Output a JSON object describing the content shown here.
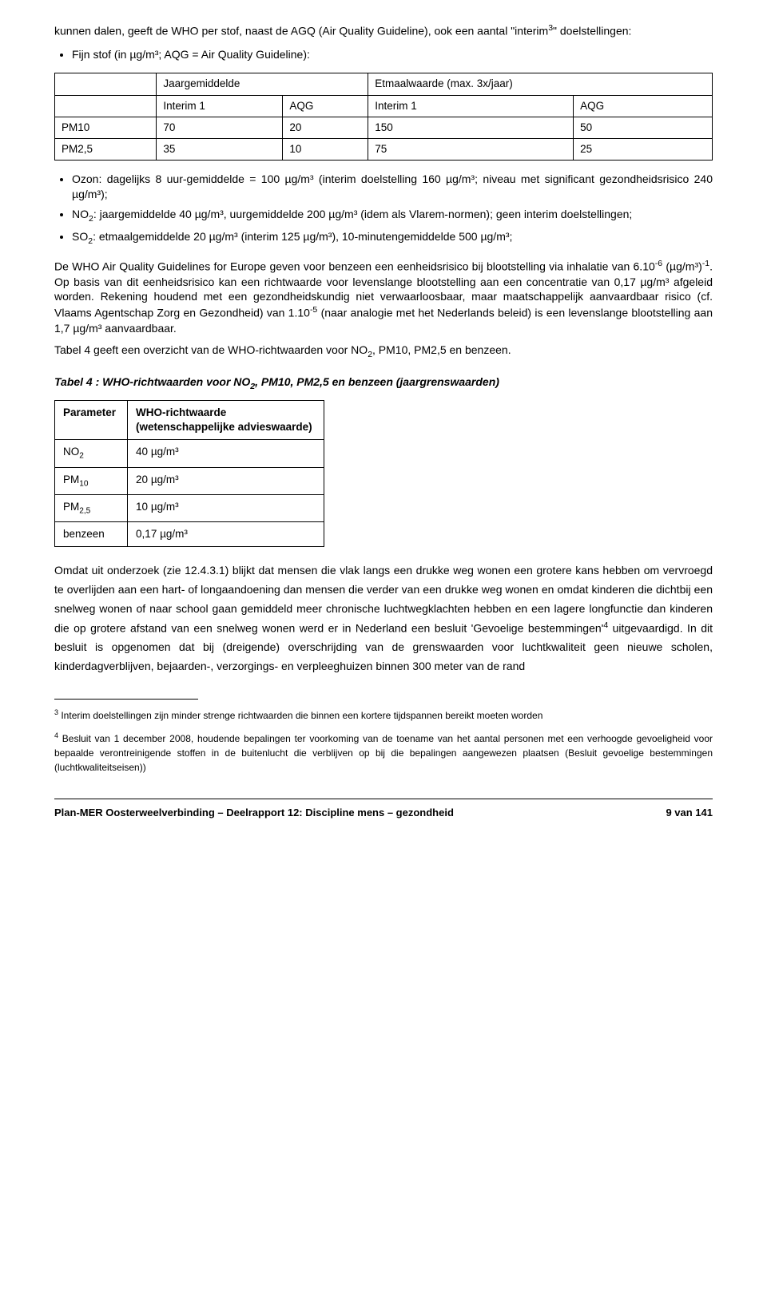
{
  "intro": {
    "para1_a": "kunnen dalen, geeft de WHO per stof, naast de AGQ (Air Quality Guideline), ook een aantal \"interim",
    "para1_sup": "3",
    "para1_b": "\" doelstellingen:"
  },
  "bullet_fijn": "Fijn stof (in µg/m³; AQG = Air Quality Guideline):",
  "table1": {
    "h_jaar": "Jaargemiddelde",
    "h_etmaal": "Etmaalwaarde (max. 3x/jaar)",
    "sub_i1a": "Interim 1",
    "sub_aqg_a": "AQG",
    "sub_i1b": "Interim 1",
    "sub_aqg_b": "AQG",
    "rows": [
      {
        "label": "PM10",
        "c1": "70",
        "c2": "20",
        "c3": "150",
        "c4": "50"
      },
      {
        "label": "PM2,5",
        "c1": "35",
        "c2": "10",
        "c3": "75",
        "c4": "25"
      }
    ]
  },
  "bullets2": {
    "ozon": "Ozon: dagelijks 8 uur-gemiddelde = 100 µg/m³ (interim doelstelling 160 µg/m³; niveau met significant gezondheidsrisico 240 µg/m³);",
    "no2_a": "NO",
    "no2_sub": "2",
    "no2_b": ": jaargemiddelde 40 µg/m³, uurgemiddelde 200 µg/m³ (idem als Vlarem-normen); geen interim doelstellingen;",
    "so2_a": "SO",
    "so2_sub": "2",
    "so2_b": ": etmaalgemiddelde 20 µg/m³ (interim 125 µg/m³), 10-minutengemiddelde 500 µg/m³;"
  },
  "para_who": {
    "a": "De WHO Air Quality Guidelines for Europe geven voor benzeen een eenheidsrisico bij blootstelling via inhalatie van 6.10",
    "sup1": "-6",
    "b": " (µg/m³)",
    "sup2": "-1",
    "c": ". Op basis van dit eenheidsrisico kan een richtwaarde voor levenslange blootstelling aan een concentratie van 0,17 µg/m³ afgeleid worden. Rekening houdend met een gezondheidskundig niet verwaarloosbaar, maar maatschappelijk aanvaardbaar risico (cf. Vlaams Agentschap Zorg en Gezondheid) van 1.10",
    "sup3": "-5",
    "d": " (naar analogie met het Nederlands beleid) is een levenslange blootstelling aan 1,7 µg/m³ aanvaardbaar."
  },
  "para_table4_intro_a": "Tabel 4 geeft een overzicht van de WHO-richtwaarden voor NO",
  "para_table4_intro_b": ", PM10, PM2,5 en benzeen.",
  "table4_title_a": "Tabel 4 : WHO-richtwaarden voor NO",
  "table4_title_b": ", PM10, PM2,5 en benzeen (jaargrenswaarden)",
  "table2": {
    "h_param": "Parameter",
    "h_richt_a": "WHO-richtwaarde",
    "h_richt_b": "(wetenschappelijke advieswaarde)",
    "rows": {
      "r0_label_a": "NO",
      "r0_label_sub": "2",
      "r0_val": "40 µg/m³",
      "r1_label_a": "PM",
      "r1_label_sub": "10",
      "r1_val": "20 µg/m³",
      "r2_label_a": "PM",
      "r2_label_sub": "2,5",
      "r2_val": "10 µg/m³",
      "r3_label": "benzeen",
      "r3_val": "0,17 µg/m³"
    }
  },
  "para_omdat_a": "Omdat uit onderzoek (zie 12.4.3.1) blijkt dat mensen die vlak langs een drukke weg wonen een grotere kans hebben om vervroegd te overlijden aan een hart- of longaandoening dan mensen die verder van een drukke weg wonen en omdat kinderen die dichtbij een snelweg wonen of naar school gaan gemiddeld meer chronische luchtwegklachten hebben en een lagere longfunctie dan kinderen die op grotere afstand van een snelweg wonen werd er in Nederland een besluit 'Gevoelige bestemmingen'",
  "para_omdat_sup": "4",
  "para_omdat_b": " uitgevaardigd. In dit besluit is opgenomen dat bij (dreigende) overschrijding van de grenswaarden voor luchtkwaliteit geen nieuwe scholen, kinderdagverblijven, bejaarden-, verzorgings- en verpleeghuizen binnen 300 meter van de rand",
  "footnotes": {
    "fn3_sup": "3",
    "fn3": " Interim doelstellingen zijn minder strenge richtwaarden die binnen een kortere tijdspannen bereikt moeten worden",
    "fn4_sup": "4",
    "fn4": " Besluit van 1 december 2008, houdende bepalingen ter voorkoming van de toename van het aantal personen met een verhoogde gevoeligheid voor bepaalde verontreinigende stoffen in de buitenlucht die verblijven op bij die bepalingen aangewezen plaatsen (Besluit gevoelige bestemmingen (luchtkwaliteitseisen))"
  },
  "footer": {
    "left": "Plan-MER Oosterweelverbinding – Deelrapport 12: Discipline mens – gezondheid",
    "right": "9 van 141"
  }
}
